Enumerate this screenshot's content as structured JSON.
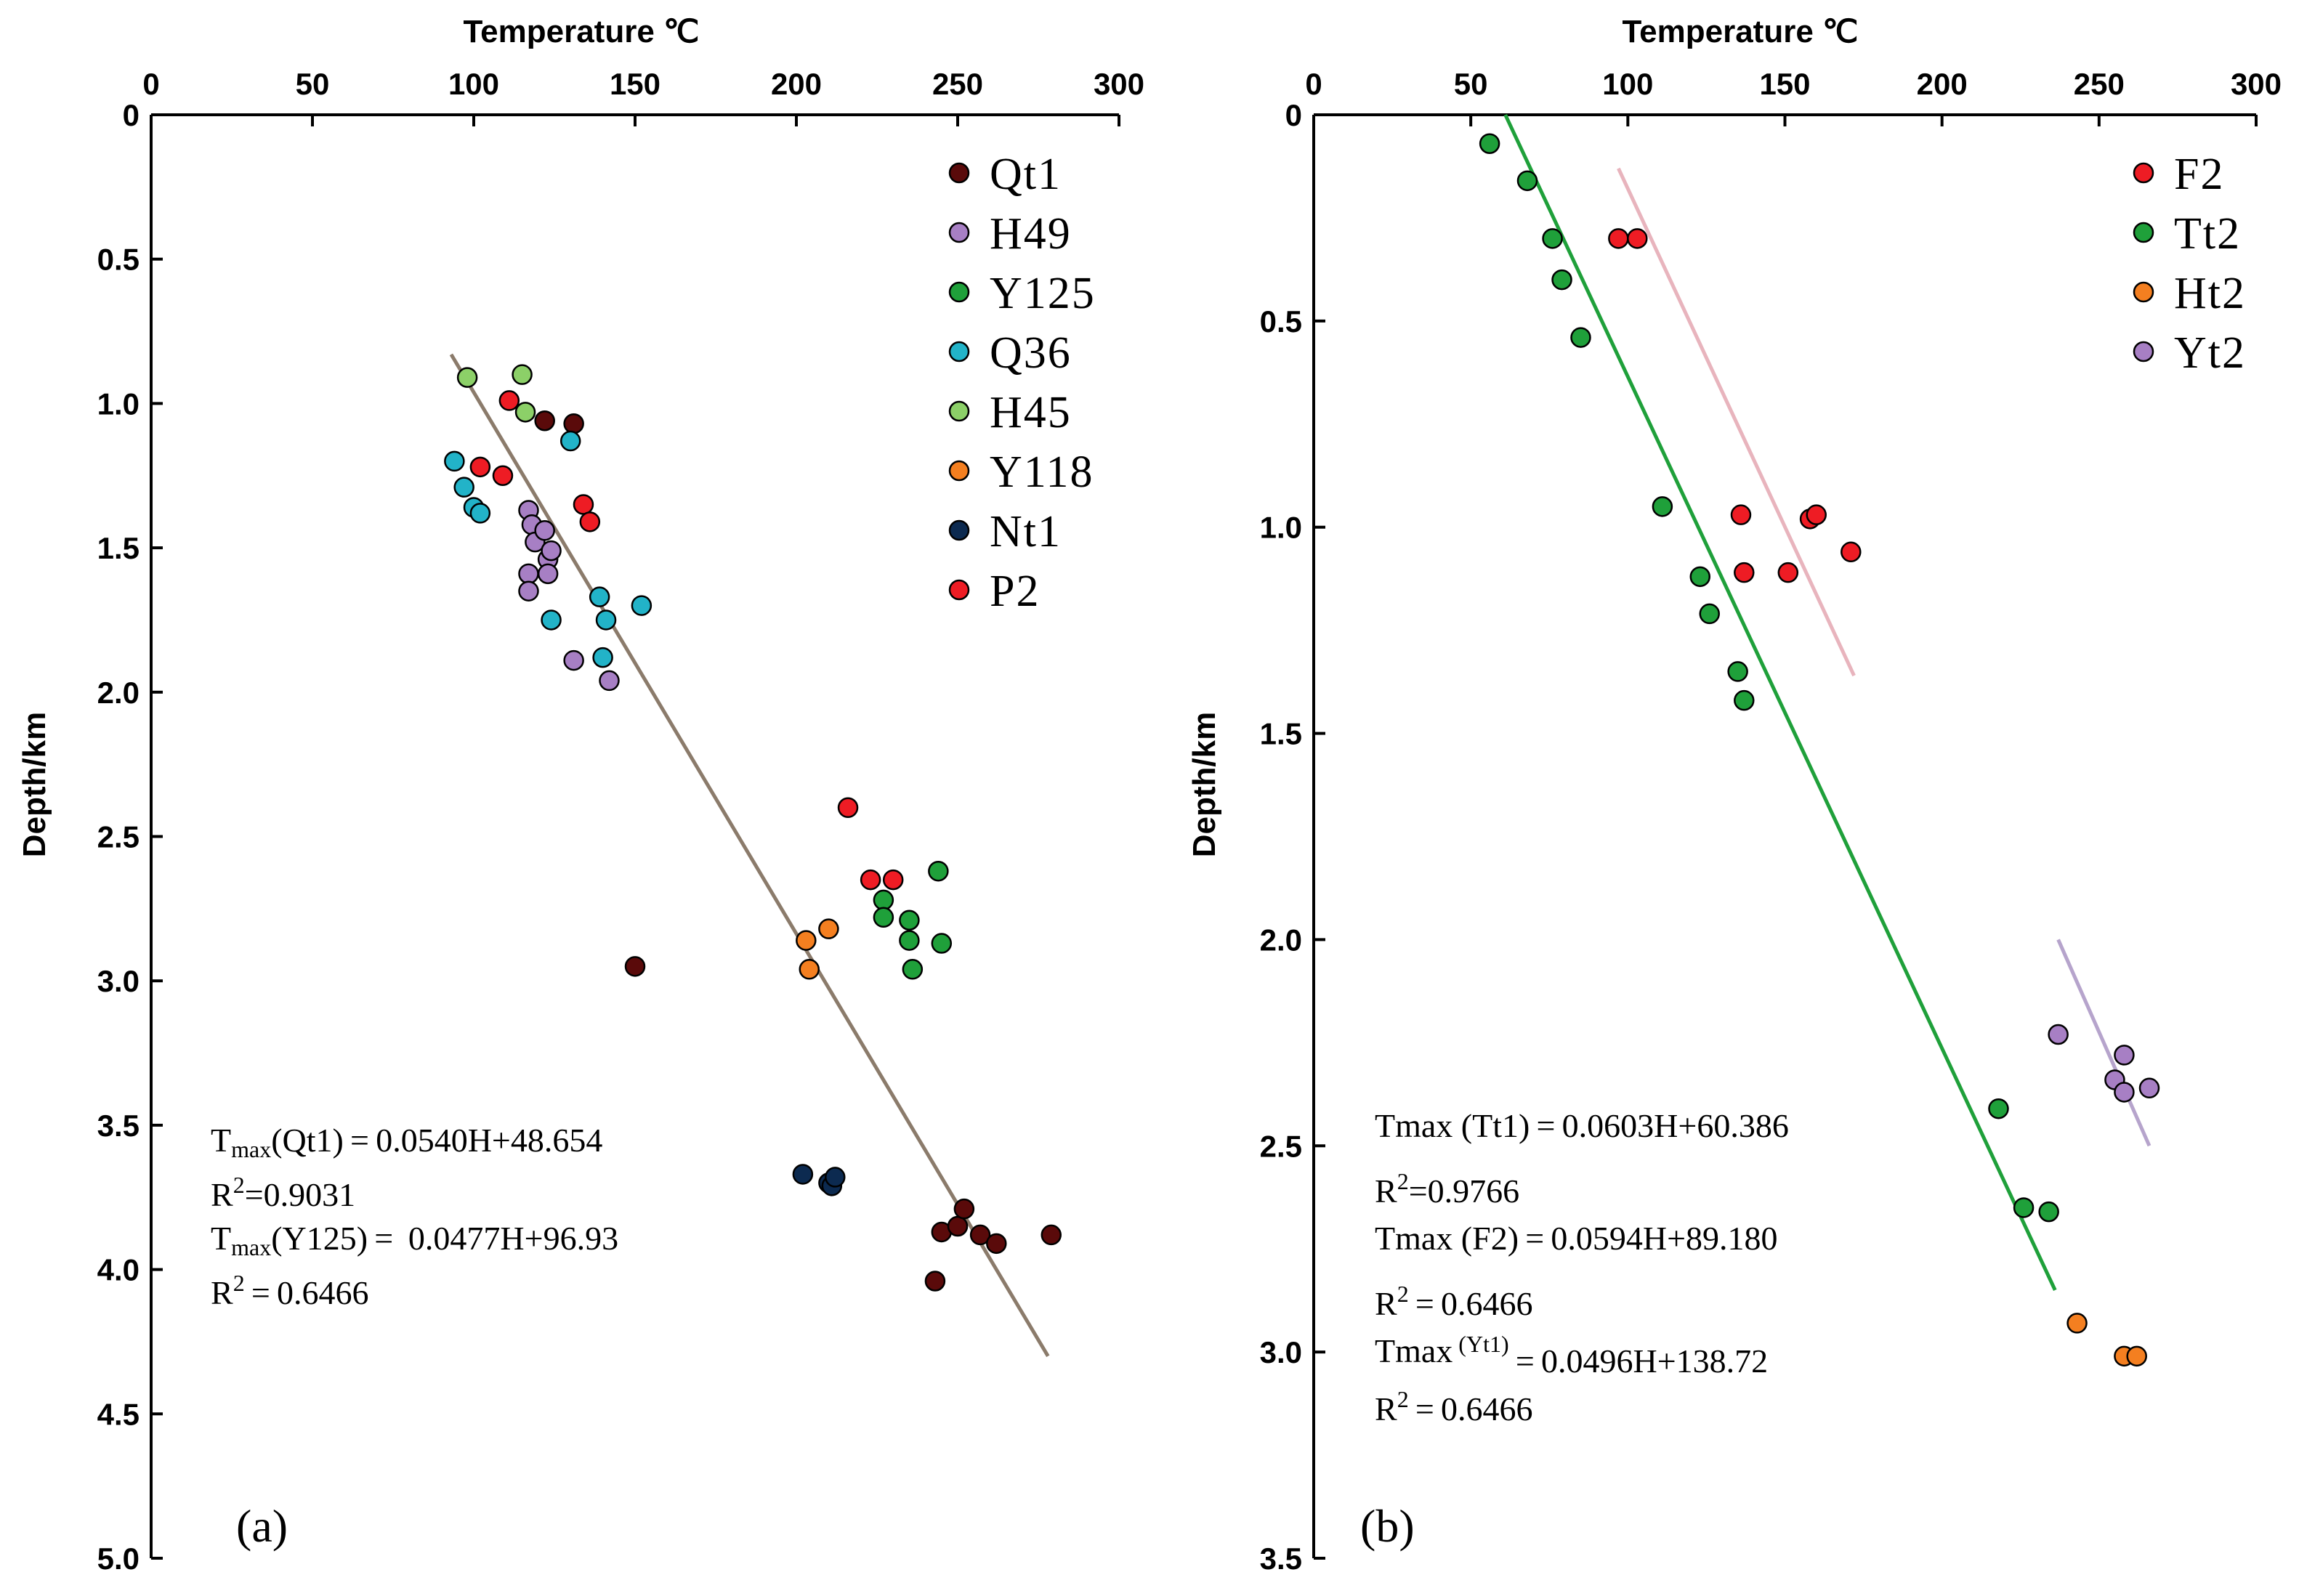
{
  "chart_data": [
    {
      "panel": "(a)",
      "type": "scatter",
      "xlabel": "Temperature ℃",
      "ylabel": "Depth/km",
      "xlim": [
        0,
        300
      ],
      "ylim": [
        0,
        5.0
      ],
      "x_axis_position": "top",
      "y_inverted": true,
      "xticks": [
        0,
        50,
        100,
        150,
        200,
        250,
        300
      ],
      "yticks": [
        0,
        0.5,
        1.0,
        1.5,
        2.0,
        2.5,
        3.0,
        3.5,
        4.0,
        4.5,
        5.0
      ],
      "ytick_labels": [
        "0",
        "0.5",
        "1.0",
        "1.5",
        "2.0",
        "2.5",
        "3.0",
        "3.5",
        "4.0",
        "4.5",
        "5.0"
      ],
      "legend_position": "top-right",
      "series": [
        {
          "name": "Qt1",
          "color": "#5a0a0a",
          "points": [
            [
              122,
              1.06
            ],
            [
              131,
              1.07
            ],
            [
              150,
              2.95
            ],
            [
              243,
              4.04
            ],
            [
              245,
              3.87
            ],
            [
              250,
              3.85
            ],
            [
              252,
              3.79
            ],
            [
              257,
              3.88
            ],
            [
              262,
              3.91
            ],
            [
              279,
              3.88
            ]
          ]
        },
        {
          "name": "H49",
          "color": "#a77fc4",
          "points": [
            [
              117,
              1.37
            ],
            [
              118,
              1.42
            ],
            [
              119,
              1.48
            ],
            [
              122,
              1.44
            ],
            [
              123,
              1.54
            ],
            [
              124,
              1.51
            ],
            [
              123,
              1.59
            ],
            [
              117,
              1.59
            ],
            [
              117,
              1.65
            ],
            [
              131,
              1.89
            ],
            [
              142,
              1.96
            ]
          ]
        },
        {
          "name": "Y125",
          "color": "#1fa03a",
          "points": [
            [
              244,
              2.62
            ],
            [
              227,
              2.72
            ],
            [
              227,
              2.78
            ],
            [
              235,
              2.79
            ],
            [
              235,
              2.86
            ],
            [
              245,
              2.87
            ],
            [
              236,
              2.96
            ]
          ]
        },
        {
          "name": "Q36",
          "color": "#22b3c8",
          "points": [
            [
              94,
              1.2
            ],
            [
              97,
              1.29
            ],
            [
              100,
              1.36
            ],
            [
              102,
              1.38
            ],
            [
              130,
              1.13
            ],
            [
              139,
              1.67
            ],
            [
              141,
              1.75
            ],
            [
              124,
              1.75
            ],
            [
              140,
              1.88
            ],
            [
              152,
              1.7
            ]
          ]
        },
        {
          "name": "H45",
          "color": "#8cd068",
          "points": [
            [
              98,
              0.91
            ],
            [
              115,
              0.9
            ],
            [
              116,
              1.03
            ]
          ]
        },
        {
          "name": "Y118",
          "color": "#f47f20",
          "points": [
            [
              203,
              2.86
            ],
            [
              204,
              2.96
            ],
            [
              210,
              2.82
            ]
          ]
        },
        {
          "name": "Nt1",
          "color": "#0c2a50",
          "points": [
            [
              202,
              3.67
            ],
            [
              210,
              3.7
            ],
            [
              211,
              3.71
            ],
            [
              212,
              3.68
            ]
          ]
        },
        {
          "name": "P2",
          "color": "#ee1c24",
          "points": [
            [
              111,
              0.99
            ],
            [
              102,
              1.22
            ],
            [
              109,
              1.25
            ],
            [
              134,
              1.35
            ],
            [
              136,
              1.41
            ],
            [
              216,
              2.4
            ],
            [
              223,
              2.65
            ],
            [
              230,
              2.65
            ]
          ]
        }
      ],
      "fit_line": {
        "color": "#8b7b6b",
        "from": [
          93,
          0.83
        ],
        "to": [
          278,
          4.3
        ]
      },
      "annotations": [
        {
          "label": "Tmax(Qt1) = 0.0540H+48.654",
          "tmax": "T",
          "sub": "max",
          "rest": "(Qt1) = 0.0540H+48.654"
        },
        {
          "label": "R2=0.9031",
          "r": "R",
          "sup": "2",
          "rest": "=0.9031"
        },
        {
          "label": "Tmax(Y125) =  0.0477H+96.93",
          "tmax": "T",
          "sub": "max",
          "rest": "(Y125) =  0.0477H+96.93"
        },
        {
          "label": "R2 = 0.6466",
          "r": "R",
          "sup": "2",
          "rest": " = 0.6466"
        }
      ]
    },
    {
      "panel": "(b)",
      "type": "scatter",
      "xlabel": "Temperature ℃",
      "ylabel": "Depth/km",
      "xlim": [
        0,
        300
      ],
      "ylim": [
        0,
        3.5
      ],
      "x_axis_position": "top",
      "y_inverted": true,
      "xticks": [
        0,
        50,
        100,
        150,
        200,
        250,
        300
      ],
      "yticks": [
        0,
        0.5,
        1.0,
        1.5,
        2.0,
        2.5,
        3.0,
        3.5
      ],
      "ytick_labels": [
        "0",
        "0.5",
        "1.0",
        "1.5",
        "2.0",
        "2.5",
        "3.0",
        "3.5"
      ],
      "legend_position": "top-right",
      "series": [
        {
          "name": "F2",
          "color": "#ee1c24",
          "points": [
            [
              97,
              0.3
            ],
            [
              103,
              0.3
            ],
            [
              136,
              0.97
            ],
            [
              137,
              1.11
            ],
            [
              151,
              1.11
            ],
            [
              158,
              0.98
            ],
            [
              160,
              0.97
            ],
            [
              171,
              1.06
            ]
          ]
        },
        {
          "name": "Tt2",
          "color": "#1fa03a",
          "points": [
            [
              56,
              0.07
            ],
            [
              68,
              0.16
            ],
            [
              76,
              0.3
            ],
            [
              79,
              0.4
            ],
            [
              85,
              0.54
            ],
            [
              111,
              0.95
            ],
            [
              123,
              1.12
            ],
            [
              126,
              1.21
            ],
            [
              135,
              1.35
            ],
            [
              137,
              1.42
            ],
            [
              218,
              2.41
            ],
            [
              226,
              2.65
            ],
            [
              234,
              2.66
            ]
          ]
        },
        {
          "name": "Ht2",
          "color": "#f47f20",
          "points": [
            [
              243,
              2.93
            ],
            [
              258,
              3.01
            ],
            [
              262,
              3.01
            ]
          ]
        },
        {
          "name": "Yt2",
          "color": "#a77fc4",
          "points": [
            [
              237,
              2.23
            ],
            [
              255,
              2.34
            ],
            [
              258,
              2.28
            ],
            [
              258,
              2.37
            ],
            [
              266,
              2.36
            ]
          ]
        }
      ],
      "fit_lines": [
        {
          "color": "#1fa03a",
          "from": [
            61,
            0.0
          ],
          "to": [
            236,
            2.85
          ]
        },
        {
          "color": "#e8b4bd",
          "from": [
            97,
            0.13
          ],
          "to": [
            172,
            1.36
          ]
        },
        {
          "color": "#b6a4cc",
          "from": [
            237,
            2.0
          ],
          "to": [
            266,
            2.5
          ]
        }
      ],
      "annotations": [
        {
          "label": "Tmax (Tt1) = 0.0603H+60.386",
          "tmax": "Tmax",
          "rest": " (Tt1) = 0.0603H+60.386"
        },
        {
          "label": "R2=0.9766",
          "r": "R",
          "sup": "2",
          "rest": "=0.9766"
        },
        {
          "label": "Tmax (F2) = 0.0594H+89.180",
          "tmax": "Tmax",
          "rest": " (F2) = 0.0594H+89.180"
        },
        {
          "label": "R2 = 0.6466",
          "r": "R",
          "sup": "2",
          "rest": " = 0.6466"
        },
        {
          "label": "Tmax (Yt1) =0.0496H+138.72",
          "tmax": "Tmax",
          "mid": " (Yt1)",
          "rest": " = 0.0496H+138.72"
        },
        {
          "label": "R2 = 0.6466",
          "r": "R",
          "sup": "2",
          "rest": " = 0.6466"
        }
      ]
    }
  ]
}
